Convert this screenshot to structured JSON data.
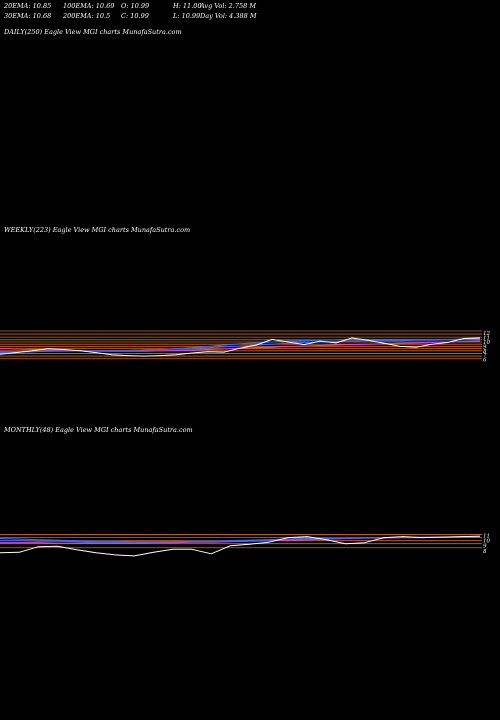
{
  "header": {
    "row1": {
      "ema20": "20EMA: 10.85",
      "ema100": "100EMA: 10.69",
      "open": "O: 10.99",
      "high": "H: 11.00",
      "avg_vol": "Avg Vol: 2.758  M"
    },
    "row2": {
      "ema30": "30EMA: 10.68",
      "ema200": "200EMA: 10.5",
      "close": "C: 10.99",
      "low": "L: 10.99",
      "day_vol": "Day Vol: 4.388  M"
    }
  },
  "panels": {
    "daily": {
      "label": "DAILY(250) Eagle   View  MGI charts MunafaSutra.com"
    },
    "weekly": {
      "label": "WEEKLY(223) Eagle   View  MGI charts MunafaSutra.com"
    },
    "monthly": {
      "label": "MONTHLY(48) Eagle   View  MGI charts MunafaSutra.com"
    }
  },
  "colors": {
    "background": "#000000",
    "price": "#ffffff",
    "ema_blue": "#3a66ff",
    "ema_pink": "#e040c0",
    "level_orange": "#d2691e"
  },
  "chart_data": [
    {
      "type": "line",
      "panel": "weekly",
      "y_tick_labels": [
        "12",
        "11",
        "10",
        "9",
        "8",
        "7",
        "6"
      ],
      "ylim": [
        5,
        12.5
      ],
      "price": [
        7.2,
        7.6,
        8.0,
        8.5,
        8.3,
        8.0,
        7.6,
        7.1,
        6.9,
        6.8,
        6.9,
        7.1,
        7.5,
        7.8,
        7.7,
        8.6,
        9.3,
        10.6,
        10.0,
        9.4,
        10.2,
        9.8,
        10.9,
        10.4,
        9.7,
        9.0,
        8.8,
        9.5,
        9.9,
        10.8,
        10.9
      ],
      "ema_a": [
        7.6,
        7.7,
        7.8,
        7.9,
        8.0,
        8.0,
        8.0,
        8.1,
        8.1,
        8.2,
        8.3,
        8.5,
        8.7,
        9.0,
        9.3,
        9.6,
        9.8,
        10.0,
        10.2,
        10.3,
        10.4,
        10.5,
        10.6,
        10.6,
        10.6,
        10.6,
        10.6,
        10.6,
        10.6,
        10.7,
        10.7
      ],
      "ema_b": [
        7.8,
        7.8,
        7.8,
        7.9,
        7.9,
        8.0,
        8.0,
        8.1,
        8.1,
        8.2,
        8.3,
        8.4,
        8.5,
        8.7,
        8.9,
        9.1,
        9.3,
        9.5,
        9.7,
        9.9,
        10.0,
        10.1,
        10.2,
        10.3,
        10.3,
        10.3,
        10.4,
        10.4,
        10.5,
        10.5,
        10.5
      ],
      "ema_pink": [
        8.5,
        8.4,
        8.3,
        8.2,
        8.1,
        8.0,
        7.9,
        7.9,
        7.9,
        7.9,
        8.0,
        8.1,
        8.2,
        8.3,
        8.4,
        8.6,
        8.7,
        8.8,
        9.0,
        9.1,
        9.2,
        9.3,
        9.4,
        9.5,
        9.6,
        9.7,
        9.8,
        9.9,
        10.0,
        10.1,
        10.2
      ],
      "levels": [
        12.5,
        11.8,
        11.1,
        10.5,
        10.0,
        9.5,
        9.0,
        8.5,
        8.0,
        7.4,
        6.8,
        6.2
      ]
    },
    {
      "type": "line",
      "panel": "monthly",
      "y_tick_labels": [
        "11",
        "10",
        "9",
        "8"
      ],
      "ylim": [
        5,
        12.5
      ],
      "price": [
        7.6,
        7.7,
        8.8,
        8.9,
        8.2,
        7.6,
        7.2,
        7.0,
        7.7,
        8.3,
        8.3,
        7.4,
        9.0,
        9.3,
        9.7,
        10.6,
        10.8,
        10.2,
        9.4,
        9.6,
        10.6,
        10.8,
        10.6,
        10.7,
        10.8,
        10.9
      ],
      "ema_a": [
        10.0,
        10.0,
        9.9,
        9.9,
        9.8,
        9.7,
        9.7,
        9.7,
        9.7,
        9.8,
        9.8,
        9.8,
        9.9,
        10.0,
        10.1,
        10.3,
        10.4,
        10.4,
        10.5,
        10.5,
        10.6,
        10.6,
        10.6,
        10.7,
        10.7,
        10.7
      ],
      "ema_b": [
        10.4,
        10.3,
        10.2,
        10.1,
        10.0,
        9.9,
        9.9,
        9.8,
        9.8,
        9.8,
        9.9,
        9.9,
        10.0,
        10.1,
        10.2,
        10.3,
        10.4,
        10.5,
        10.5,
        10.6,
        10.6,
        10.6,
        10.7,
        10.7,
        10.7,
        10.8
      ],
      "ema_pink": [
        9.6,
        9.6,
        9.6,
        9.5,
        9.5,
        9.5,
        9.5,
        9.5,
        9.6,
        9.6,
        9.7,
        9.7,
        9.8,
        9.9,
        10.0,
        10.1,
        10.2,
        10.3,
        10.4,
        10.5,
        10.5,
        10.6,
        10.6,
        10.7,
        10.7,
        10.8
      ],
      "levels": [
        11.2,
        10.6,
        10.0,
        9.4,
        8.6
      ]
    }
  ]
}
